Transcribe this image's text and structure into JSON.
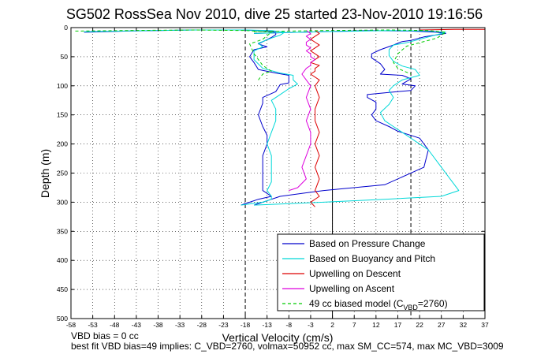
{
  "chart_data": {
    "type": "line",
    "title": "SG502 RossSea Nov 2010, dive 25 started 23-Nov-2010 19:16:56",
    "xlabel": "Vertical Velocity (cm/s)",
    "ylabel": "Depth (m)",
    "xlim": [
      -58,
      37
    ],
    "ylim": [
      500,
      0
    ],
    "y_reversed": true,
    "grid": true,
    "legend_position": "bottom-right",
    "x_ticks": [
      "-58",
      "-53",
      "-48",
      "-43",
      "-38",
      "-33",
      "-28",
      "-23",
      "-18",
      "-13",
      "-8",
      "-3",
      "2",
      "7",
      "12",
      "17",
      "22",
      "27",
      "32",
      "37"
    ],
    "y_ticks": [
      "0",
      "50",
      "100",
      "150",
      "200",
      "250",
      "300",
      "350",
      "400",
      "450",
      "500"
    ],
    "reference_lines": [
      {
        "x": -18,
        "style": "dashed",
        "color": "#000000"
      },
      {
        "x": 2,
        "style": "solid",
        "color": "#000000"
      },
      {
        "x": 20,
        "style": "dashed",
        "color": "#000000"
      }
    ],
    "series": [
      {
        "name": "Based on Pressure Change",
        "color": "#0000cc",
        "style": "solid",
        "segments": [
          {
            "x": [
              -55,
              -45,
              -30,
              -20,
              -14,
              -11,
              -11,
              -12,
              -15,
              -13,
              -16,
              -17,
              -16,
              -15,
              -11,
              -8,
              -8,
              -8,
              -10,
              -11,
              -14,
              -14,
              -15,
              -14,
              -13,
              -13,
              -14,
              -14,
              -14,
              -14,
              -14,
              -12,
              -15,
              -19
            ],
            "y": [
              8,
              6,
              4,
              4,
              5,
              8,
              12,
              17,
              28,
              33,
              38,
              50,
              60,
              72,
              78,
              82,
              88,
              95,
              98,
              110,
              120,
              130,
              150,
              170,
              185,
              200,
              220,
              240,
              255,
              265,
              280,
              290,
              295,
              305
            ]
          },
          {
            "x": [
              -16,
              -5,
              10,
              20,
              26,
              28,
              23,
              20,
              18,
              16,
              13,
              11,
              11,
              13,
              14,
              13,
              18,
              20,
              18,
              21,
              20,
              14,
              10,
              10,
              12,
              12,
              11,
              12,
              15,
              17,
              22,
              24,
              23,
              14,
              0,
              -10,
              -16
            ],
            "y": [
              10,
              8,
              5,
              6,
              8,
              10,
              16,
              22,
              24,
              30,
              38,
              45,
              52,
              62,
              72,
              80,
              82,
              88,
              97,
              100,
              108,
              112,
              115,
              120,
              128,
              140,
              150,
              160,
              170,
              178,
              190,
              210,
              240,
              270,
              280,
              290,
              305
            ]
          }
        ]
      },
      {
        "name": "Based on Buoyancy and Pitch",
        "color": "#00d8d8",
        "style": "solid",
        "segments": [
          {
            "x": [
              -55,
              -40,
              -28,
              -18,
              -12,
              -9,
              -10,
              -12,
              -15,
              -14,
              -16,
              -16,
              -14,
              -10,
              -7,
              -7,
              -6,
              -8,
              -10,
              -12,
              -11,
              -11,
              -12,
              -13,
              -12,
              -12,
              -12,
              -12,
              -13,
              -12,
              -12,
              -14,
              -19
            ],
            "y": [
              7,
              5,
              4,
              4,
              5,
              8,
              13,
              18,
              27,
              33,
              40,
              55,
              70,
              78,
              82,
              90,
              97,
              105,
              115,
              125,
              140,
              160,
              180,
              200,
              220,
              240,
              255,
              265,
              280,
              290,
              295,
              300,
              305
            ]
          },
          {
            "x": [
              -16,
              0,
              15,
              24,
              28,
              26,
              22,
              19,
              16,
              15,
              15,
              16,
              18,
              21,
              22,
              18,
              16,
              15,
              16,
              15,
              13,
              14,
              16,
              18,
              21,
              24,
              27,
              29,
              31,
              27,
              14,
              0,
              -16
            ],
            "y": [
              10,
              7,
              5,
              6,
              8,
              12,
              20,
              26,
              30,
              38,
              48,
              58,
              66,
              72,
              82,
              90,
              100,
              108,
              120,
              132,
              146,
              160,
              170,
              180,
              195,
              210,
              240,
              260,
              280,
              290,
              295,
              300,
              305
            ]
          }
        ]
      },
      {
        "name": "Upwelling on Descent",
        "color": "#dd0000",
        "style": "solid",
        "segments": [
          {
            "x": [
              -2,
              -1,
              -2,
              -3,
              -2,
              -1,
              -2,
              -3,
              -2,
              -1,
              -2,
              -3,
              -1,
              -2,
              -2,
              -3,
              -1,
              -2,
              -1,
              -2,
              -2,
              -1,
              -2,
              -1,
              -2,
              -1,
              -2,
              -1,
              -3,
              -2
            ],
            "y": [
              5,
              10,
              15,
              20,
              25,
              30,
              35,
              40,
              45,
              50,
              55,
              60,
              65,
              70,
              75,
              80,
              90,
              100,
              120,
              140,
              160,
              180,
              200,
              220,
              240,
              260,
              280,
              290,
              300,
              308
            ]
          },
          {
            "x": [
              22,
              30,
              37
            ],
            "y": [
              4,
              3,
              3
            ]
          }
        ]
      },
      {
        "name": "Upwelling on Ascent",
        "color": "#dd00dd",
        "style": "solid",
        "segments": [
          {
            "x": [
              -4,
              -3,
              -4,
              -3,
              -4,
              -4,
              -3,
              -4,
              -3,
              -3,
              -2,
              -3,
              -3,
              -4,
              -5,
              -4,
              -3,
              -4,
              -3,
              -4,
              -3,
              -3,
              -4,
              -5,
              -4,
              -6,
              -8
            ],
            "y": [
              5,
              10,
              15,
              20,
              25,
              30,
              35,
              40,
              45,
              50,
              55,
              60,
              65,
              70,
              80,
              90,
              100,
              120,
              140,
              160,
              180,
              200,
              220,
              240,
              260,
              275,
              280
            ]
          }
        ]
      },
      {
        "name": "49 cc biased model (C_VBD=2760)",
        "color": "#00cc00",
        "style": "dashed",
        "segments": [
          {
            "x": [
              -57,
              -45,
              -30,
              -18,
              -12,
              -14,
              -17,
              -16,
              -14,
              -12,
              -14,
              -15
            ],
            "y": [
              6,
              5,
              4,
              5,
              8,
              20,
              28,
              45,
              65,
              75,
              80,
              90
            ]
          },
          {
            "x": [
              -16,
              0,
              15,
              24,
              28,
              26,
              22,
              19,
              17,
              16,
              17,
              20
            ],
            "y": [
              7,
              5,
              4,
              5,
              8,
              18,
              26,
              32,
              45,
              60,
              70,
              80
            ]
          }
        ]
      }
    ]
  },
  "legend": {
    "items": [
      {
        "label": "Based on Pressure Change",
        "color": "#0000cc",
        "dashed": false
      },
      {
        "label": "Based on Buoyancy and Pitch",
        "color": "#00d8d8",
        "dashed": false
      },
      {
        "label": "Upwelling on Descent",
        "color": "#dd0000",
        "dashed": false
      },
      {
        "label": "Upwelling on Ascent",
        "color": "#dd00dd",
        "dashed": false
      },
      {
        "label": "49 cc biased model (C",
        "sub": "VBD",
        "suffix": "=2760)",
        "color": "#00cc00",
        "dashed": true
      }
    ]
  },
  "footer": {
    "line1": "VBD bias = 0 cc",
    "line2": "best fit VBD bias=49 implies: C_VBD=2760, volmax=50952 cc, max SM_CC=574, max MC_VBD=3009"
  }
}
